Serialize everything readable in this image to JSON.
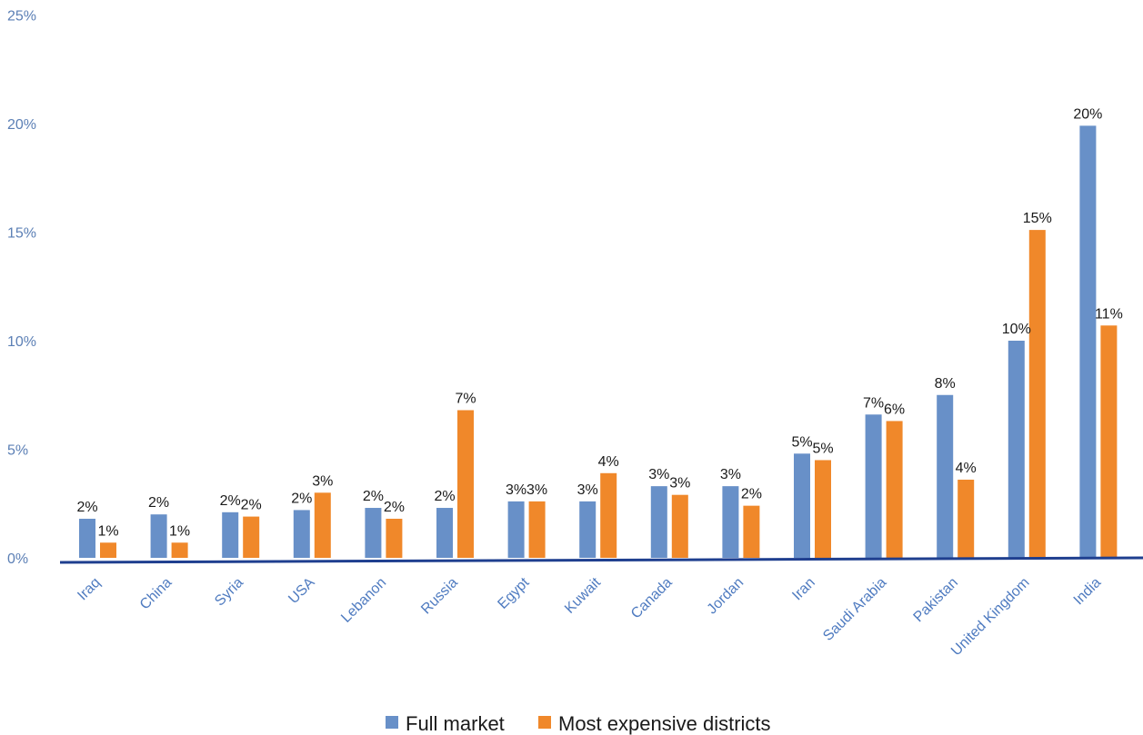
{
  "chart_data": {
    "type": "bar",
    "title": "",
    "xlabel": "",
    "ylabel": "",
    "ylim": [
      0,
      25
    ],
    "ytick_values": [
      0,
      5,
      10,
      15,
      20,
      25
    ],
    "ytick_labels": [
      "0%",
      "5%",
      "10%",
      "15%",
      "20%",
      "25%"
    ],
    "grid": false,
    "legend_position": "bottom",
    "categories": [
      "Iraq",
      "China",
      "Syria",
      "USA",
      "Lebanon",
      "Russia",
      "Egypt",
      "Kuwait",
      "Canada",
      "Jordan",
      "Iran",
      "Saudi Arabia",
      "Pakistan",
      "United Kingdom",
      "India"
    ],
    "series": [
      {
        "name": "Full market",
        "color": "#6890c8",
        "values": [
          1.8,
          2.0,
          2.1,
          2.2,
          2.3,
          2.3,
          2.6,
          2.6,
          3.3,
          3.3,
          4.8,
          6.6,
          7.5,
          10.0,
          19.9
        ],
        "labels": [
          "2%",
          "2%",
          "2%",
          "2%",
          "2%",
          "2%",
          "3%",
          "3%",
          "3%",
          "3%",
          "5%",
          "7%",
          "8%",
          "10%",
          "20%"
        ]
      },
      {
        "name": "Most expensive districts",
        "color": "#f0882a",
        "values": [
          0.7,
          0.7,
          1.9,
          3.0,
          1.8,
          6.8,
          2.6,
          3.9,
          2.9,
          2.4,
          4.5,
          6.3,
          3.6,
          15.1,
          10.7
        ],
        "labels": [
          "1%",
          "1%",
          "2%",
          "3%",
          "2%",
          "7%",
          "3%",
          "4%",
          "3%",
          "2%",
          "5%",
          "6%",
          "4%",
          "15%",
          "11%"
        ]
      }
    ],
    "axis_line_color": "#1f3f8f"
  }
}
